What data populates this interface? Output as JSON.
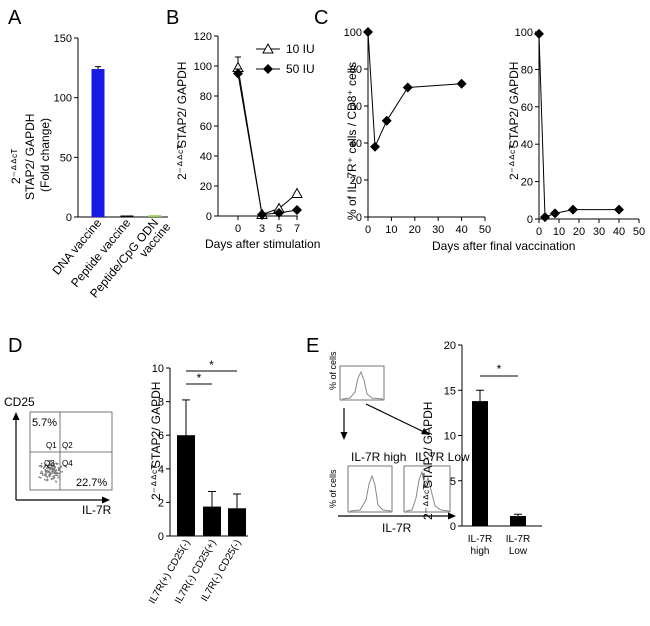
{
  "panels": {
    "A": {
      "letter": "A",
      "ylabel_main": "STAP2/ GAPDH",
      "ylabel_sub": "(Fold change)",
      "ylabel_prefix": "2⁻ᐞᐞᶜᵀ",
      "ylim": [
        0,
        150
      ],
      "yticks": [
        "0",
        "50",
        "100",
        "150"
      ],
      "categories": [
        "DNA vaccine",
        "Peptide vaccine",
        "Peptide/CpG ODN"
      ],
      "category_extra": "vaccine",
      "values": [
        124,
        0.5,
        1.5
      ],
      "errors": [
        2,
        0.3,
        0.5
      ],
      "colors": [
        "#1a1ae6",
        "#000000",
        "#90d050"
      ]
    },
    "B": {
      "letter": "B",
      "ylabel_main": "STAP2/ GAPDH",
      "ylabel_prefix": "2⁻ᐞᐞᶜᵀ",
      "xlabel": "Days after stimulation",
      "ylim": [
        0,
        120
      ],
      "yticks": [
        "0",
        "20",
        "40",
        "60",
        "80",
        "100",
        "120"
      ],
      "xticks": [
        "0",
        "3",
        "5",
        "7"
      ],
      "legend": [
        "10 IU",
        "50 IU"
      ],
      "series": [
        {
          "name": "10 IU",
          "x": [
            0,
            3,
            5,
            7
          ],
          "y": [
            99,
            1,
            5,
            15
          ],
          "err": [
            7,
            0,
            0,
            0
          ]
        },
        {
          "name": "50 IU",
          "x": [
            0,
            3,
            5,
            7
          ],
          "y": [
            95,
            1,
            2,
            4
          ],
          "err": [
            3,
            0,
            0,
            0
          ]
        }
      ]
    },
    "C": {
      "letter": "C",
      "ylabel_left": "% of IL-7R⁺ cells / CD8⁺ cells",
      "ylabel_right_main": "STAP2/ GAPDH",
      "ylabel_right_prefix": "2⁻ᐞᐞᶜᵀ",
      "xlabel": "Days after final vaccination",
      "ylim_left": [
        0,
        100
      ],
      "yticks_left": [
        "0",
        "20",
        "40",
        "60",
        "80",
        "100"
      ],
      "xticks_left": [
        "0",
        "10",
        "20",
        "30",
        "40",
        "50"
      ],
      "left_series": {
        "x": [
          0,
          3,
          8,
          17,
          40
        ],
        "y": [
          100,
          38,
          52,
          70,
          72
        ]
      },
      "ylim_right": [
        0,
        100
      ],
      "yticks_right": [
        "0",
        "20",
        "40",
        "60",
        "80",
        "100"
      ],
      "xticks_right": [
        "0",
        "10",
        "20",
        "30",
        "40",
        "50"
      ],
      "right_series": {
        "x": [
          0,
          3,
          8,
          17,
          40
        ],
        "y": [
          99,
          1,
          3,
          5,
          5
        ]
      }
    },
    "D": {
      "letter": "D",
      "flow_ylabel": "CD25",
      "flow_xlabel": "IL-7R",
      "q1_pct": "5.7%",
      "q4_pct": "22.7%",
      "q_labels": [
        "Q1",
        "Q2",
        "Q3",
        "Q4"
      ],
      "ylabel_main": "STAP2/ GAPDH",
      "ylabel_prefix": "2⁻ᐞᐞᶜᵀ",
      "ylim": [
        0,
        10
      ],
      "yticks": [
        "0",
        "2",
        "4",
        "6",
        "8",
        "10"
      ],
      "categories": [
        "IL7R(+) CD25(-)",
        "IL7R(-) CD25(+)",
        "IL7R(-) CD25(-)"
      ],
      "values": [
        6.0,
        1.75,
        1.65
      ],
      "errors": [
        2.1,
        0.9,
        0.85
      ],
      "sig": [
        "*",
        "*"
      ]
    },
    "E": {
      "letter": "E",
      "hist_ylabel": "% of cells",
      "hist_xlabel": "IL-7R",
      "label_high": "IL-7R high",
      "label_low": "IL-7R Low",
      "ylabel_main": "STAP2/ GAPDH",
      "ylabel_prefix": "2⁻ᐞᐞᶜᵀ",
      "ylim": [
        0,
        20
      ],
      "yticks": [
        "0",
        "5",
        "10",
        "15",
        "20"
      ],
      "categories": [
        "IL-7R high",
        "IL-7R Low"
      ],
      "values": [
        13.8,
        1.1
      ],
      "errors": [
        1.2,
        0.2
      ],
      "sig": "*"
    }
  },
  "chart_data": [
    {
      "type": "bar",
      "title": "A",
      "categories": [
        "DNA vaccine",
        "Peptide vaccine",
        "Peptide/CpG ODN vaccine"
      ],
      "values": [
        124,
        0.5,
        1.5
      ],
      "ylabel": "2^-ΔΔCT STAP2/ GAPDH (Fold change)",
      "ylim": [
        0,
        150
      ]
    },
    {
      "type": "line",
      "title": "B",
      "x": [
        0,
        3,
        5,
        7
      ],
      "series": [
        {
          "name": "10 IU",
          "values": [
            99,
            1,
            5,
            15
          ]
        },
        {
          "name": "50 IU",
          "values": [
            95,
            1,
            2,
            4
          ]
        }
      ],
      "xlabel": "Days after stimulation",
      "ylabel": "2^-ΔΔCT STAP2/ GAPDH",
      "ylim": [
        0,
        120
      ]
    },
    {
      "type": "line",
      "title": "C-left",
      "x": [
        0,
        3,
        8,
        17,
        40
      ],
      "values": [
        100,
        38,
        52,
        70,
        72
      ],
      "xlabel": "Days after final vaccination",
      "ylabel": "% of IL-7R+ cells / CD8+ cells",
      "ylim": [
        0,
        100
      ]
    },
    {
      "type": "line",
      "title": "C-right",
      "x": [
        0,
        3,
        8,
        17,
        40
      ],
      "values": [
        99,
        1,
        3,
        5,
        5
      ],
      "xlabel": "Days after final vaccination",
      "ylabel": "2^-ΔΔCT STAP2/ GAPDH",
      "ylim": [
        0,
        100
      ]
    },
    {
      "type": "bar",
      "title": "D",
      "categories": [
        "IL7R(+) CD25(-)",
        "IL7R(-) CD25(+)",
        "IL7R(-) CD25(-)"
      ],
      "values": [
        6.0,
        1.75,
        1.65
      ],
      "ylabel": "2^-ΔΔCT STAP2/ GAPDH",
      "ylim": [
        0,
        10
      ]
    },
    {
      "type": "bar",
      "title": "E",
      "categories": [
        "IL-7R high",
        "IL-7R Low"
      ],
      "values": [
        13.8,
        1.1
      ],
      "ylabel": "2^-ΔΔCT STAP2/ GAPDH",
      "ylim": [
        0,
        20
      ]
    }
  ]
}
